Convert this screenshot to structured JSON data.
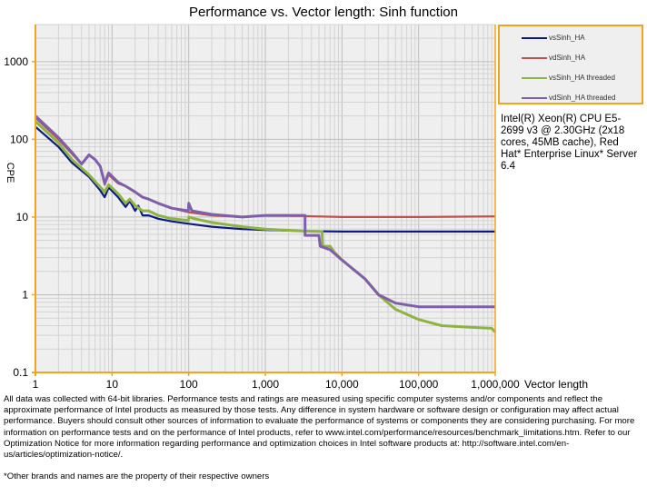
{
  "chart_data": {
    "type": "line",
    "title": "Performance vs. Vector length: Sinh function",
    "xlabel": "Vector length",
    "ylabel": "CPE",
    "xscale": "log",
    "yscale": "log",
    "xlim": [
      1,
      1000000
    ],
    "ylim": [
      0.1,
      3000
    ],
    "x_ticks": [
      {
        "v": 1,
        "label": "1"
      },
      {
        "v": 10,
        "label": "10"
      },
      {
        "v": 100,
        "label": "100"
      },
      {
        "v": 1000,
        "label": "1,000"
      },
      {
        "v": 10000,
        "label": "10,000"
      },
      {
        "v": 100000,
        "label": "100,000"
      },
      {
        "v": 1000000,
        "label": "1,000,000"
      }
    ],
    "y_ticks": [
      {
        "v": 0.1,
        "label": "0.1"
      },
      {
        "v": 1,
        "label": "1"
      },
      {
        "v": 10,
        "label": "10"
      },
      {
        "v": 100,
        "label": "100"
      },
      {
        "v": 1000,
        "label": "1000"
      }
    ],
    "grid": true,
    "legend_position": "right",
    "series": [
      {
        "name": "vsSinh_HA",
        "color": "#0b1a80",
        "points": [
          [
            1,
            145
          ],
          [
            2,
            80
          ],
          [
            3,
            50
          ],
          [
            5,
            33
          ],
          [
            7,
            22
          ],
          [
            8,
            18
          ],
          [
            9,
            24
          ],
          [
            12,
            18
          ],
          [
            15,
            13.5
          ],
          [
            17,
            16
          ],
          [
            20,
            12
          ],
          [
            22,
            14
          ],
          [
            25,
            10.5
          ],
          [
            30,
            10.5
          ],
          [
            40,
            9.5
          ],
          [
            60,
            8.8
          ],
          [
            100,
            8.2
          ],
          [
            200,
            7.5
          ],
          [
            500,
            7
          ],
          [
            1000,
            6.8
          ],
          [
            3000,
            6.6
          ],
          [
            10000,
            6.5
          ],
          [
            100000,
            6.5
          ],
          [
            1000000,
            6.5
          ]
        ]
      },
      {
        "name": "vdSinh_HA",
        "color": "#c0504d",
        "points": [
          [
            1,
            190
          ],
          [
            2,
            100
          ],
          [
            3,
            65
          ],
          [
            4,
            48
          ],
          [
            5,
            62
          ],
          [
            6,
            55
          ],
          [
            7,
            45
          ],
          [
            8,
            26
          ],
          [
            9,
            35
          ],
          [
            12,
            27
          ],
          [
            15,
            25
          ],
          [
            20,
            21
          ],
          [
            25,
            18
          ],
          [
            30,
            17
          ],
          [
            40,
            15
          ],
          [
            60,
            13
          ],
          [
            100,
            11.5
          ],
          [
            200,
            10.5
          ],
          [
            500,
            10
          ],
          [
            1000,
            10.5
          ],
          [
            3000,
            10.3
          ],
          [
            10000,
            10
          ],
          [
            100000,
            10
          ],
          [
            1000000,
            10.2
          ]
        ]
      },
      {
        "name": "vsSinh_HA threaded",
        "color": "#8db345",
        "points": [
          [
            1,
            170
          ],
          [
            2,
            90
          ],
          [
            3,
            55
          ],
          [
            5,
            35
          ],
          [
            8,
            21
          ],
          [
            9,
            26
          ],
          [
            12,
            20
          ],
          [
            15,
            15
          ],
          [
            17,
            17
          ],
          [
            20,
            14
          ],
          [
            25,
            12
          ],
          [
            30,
            12
          ],
          [
            40,
            10.5
          ],
          [
            60,
            9.5
          ],
          [
            99,
            9
          ],
          [
            100,
            10
          ],
          [
            120,
            9.5
          ],
          [
            200,
            8.5
          ],
          [
            500,
            7.5
          ],
          [
            1000,
            7
          ],
          [
            3000,
            6.6
          ],
          [
            5500,
            6.5
          ],
          [
            5600,
            4.2
          ],
          [
            7000,
            4.2
          ],
          [
            8000,
            3.5
          ],
          [
            10000,
            2.8
          ],
          [
            20000,
            1.6
          ],
          [
            30000,
            1.0
          ],
          [
            50000,
            0.65
          ],
          [
            100000,
            0.48
          ],
          [
            200000,
            0.4
          ],
          [
            500000,
            0.38
          ],
          [
            900000,
            0.37
          ],
          [
            1000000,
            0.33
          ]
        ]
      },
      {
        "name": "vdSinh_HA threaded",
        "color": "#7f5fa8",
        "points": [
          [
            1,
            200
          ],
          [
            2,
            105
          ],
          [
            3,
            68
          ],
          [
            4,
            48
          ],
          [
            5,
            63
          ],
          [
            6,
            55
          ],
          [
            7,
            45
          ],
          [
            8,
            27
          ],
          [
            9,
            37
          ],
          [
            12,
            28
          ],
          [
            15,
            25
          ],
          [
            20,
            21
          ],
          [
            25,
            18
          ],
          [
            30,
            17
          ],
          [
            40,
            15
          ],
          [
            60,
            13
          ],
          [
            99,
            12
          ],
          [
            100,
            15
          ],
          [
            110,
            12
          ],
          [
            200,
            10.8
          ],
          [
            500,
            10
          ],
          [
            1000,
            10.5
          ],
          [
            3300,
            10.5
          ],
          [
            3300,
            5.8
          ],
          [
            5000,
            5.8
          ],
          [
            5200,
            4.2
          ],
          [
            7000,
            3.8
          ],
          [
            10000,
            2.8
          ],
          [
            20000,
            1.6
          ],
          [
            30000,
            1.0
          ],
          [
            50000,
            0.78
          ],
          [
            100000,
            0.7
          ],
          [
            1000000,
            0.7
          ]
        ]
      }
    ]
  },
  "system_info": "Intel(R) Xeon(R) CPU E5-2699 v3 @ 2.30GHz (2x18 cores, 45MB cache), Red Hat* Enterprise Linux* Server 6.4",
  "disclaimer": "All data was collected with 64-bit libraries. Performance tests and ratings are measured using specific computer systems and/or components and reflect the approximate performance of Intel products as measured by those tests. Any difference in system hardware or software design or configuration may affect actual performance. Buyers should consult other sources of information to evaluate the performance of systems or components they are considering purchasing. For more information on performance tests and on the performance of Intel products, refer to www.intel.com/performance/resources/benchmark_limitations.htm. Refer to our Optimization Notice for more information regarding performance and optimization choices in Intel software products at: http://software.intel.com/en-us/articles/optimization-notice/.",
  "trademark": "*Other brands and names are the property of their respective owners"
}
